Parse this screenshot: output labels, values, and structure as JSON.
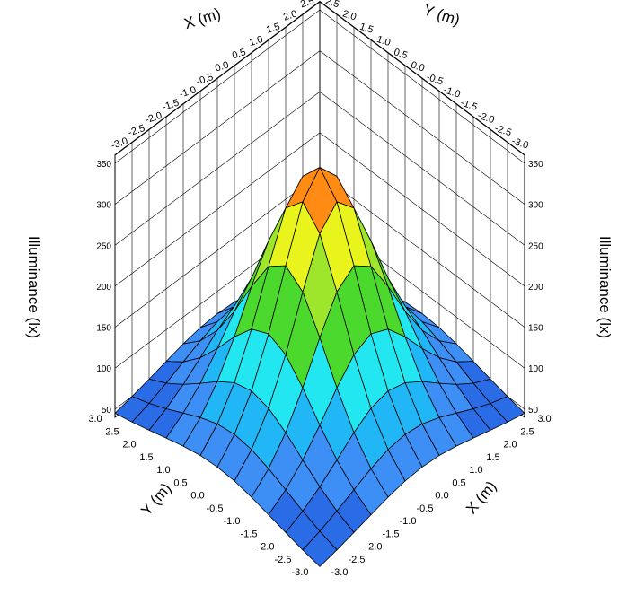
{
  "chart_data": {
    "type": "surface3d",
    "x_label": "X (m)",
    "y_label": "Y (m)",
    "z_label": "Illuminance (lx)",
    "x_ticks": [
      "-3.0",
      "-2.5",
      "-2.0",
      "-1.5",
      "-1.0",
      "-0.5",
      "0.0",
      "0.5",
      "1.0",
      "1.5",
      "2.0",
      "2.5",
      "3.0"
    ],
    "y_ticks": [
      "-3.0",
      "-2.5",
      "-2.0",
      "-1.5",
      "-1.0",
      "-0.5",
      "0.0",
      "0.5",
      "1.0",
      "1.5",
      "2.0",
      "2.5",
      "3.0"
    ],
    "z_ticks": [
      "50",
      "100",
      "150",
      "200",
      "250",
      "300",
      "350"
    ],
    "x_range": [
      -3.0,
      3.0
    ],
    "y_range": [
      -3.0,
      3.0
    ],
    "z_range": [
      40,
      360
    ],
    "grid_step": 0.5,
    "surface": {
      "peak_value": 345,
      "peak_x": 0.0,
      "peak_y": 0.0,
      "corner_value": 45,
      "description": "Smooth single-peak illuminance distribution, maximum at the center."
    },
    "color_bands": [
      {
        "from": 40,
        "to": 70,
        "color": "#2a6be6"
      },
      {
        "from": 70,
        "to": 100,
        "color": "#3d8ef5"
      },
      {
        "from": 100,
        "to": 130,
        "color": "#21b6f5"
      },
      {
        "from": 130,
        "to": 160,
        "color": "#22e6f0"
      },
      {
        "from": 160,
        "to": 190,
        "color": "#2ad66a"
      },
      {
        "from": 190,
        "to": 220,
        "color": "#4cd92d"
      },
      {
        "from": 220,
        "to": 250,
        "color": "#9ee62c"
      },
      {
        "from": 250,
        "to": 280,
        "color": "#e8f41b"
      },
      {
        "from": 280,
        "to": 310,
        "color": "#ffc21a"
      },
      {
        "from": 310,
        "to": 340,
        "color": "#ff8a14"
      },
      {
        "from": 340,
        "to": 370,
        "color": "#f0541c"
      }
    ]
  }
}
